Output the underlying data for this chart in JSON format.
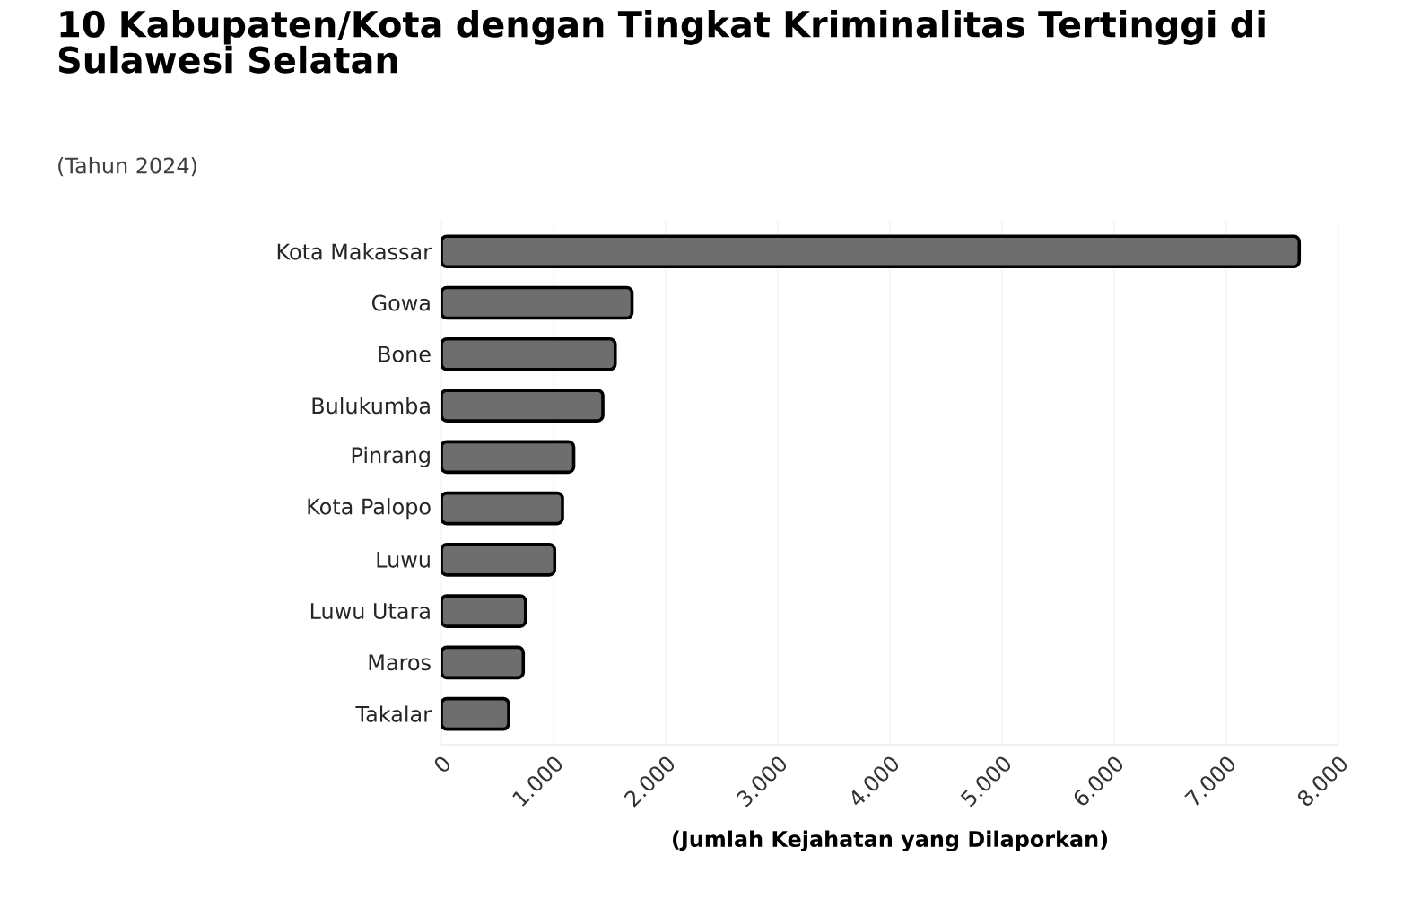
{
  "chart_data": {
    "type": "bar",
    "orientation": "horizontal",
    "title": "10 Kabupaten/Kota dengan Tingkat Kriminalitas Tertinggi di Sulawesi Selatan",
    "subtitle": "(Tahun 2024)",
    "xlabel": "(Jumlah Kejahatan yang Dilaporkan)",
    "categories": [
      "Kota Makassar",
      "Gowa",
      "Bone",
      "Bulukumba",
      "Pinrang",
      "Kota Palopo",
      "Luwu",
      "Luwu Utara",
      "Maros",
      "Takalar"
    ],
    "values": [
      7650,
      1700,
      1550,
      1440,
      1180,
      1080,
      1010,
      750,
      730,
      600
    ],
    "color": "#6e6e6e",
    "xlim": [
      0,
      8000
    ],
    "xticks": [
      0,
      {
        "value": 1000,
        "label": "1.000"
      },
      {
        "value": 2000,
        "label": "2.000"
      },
      {
        "value": 3000,
        "label": "3.000"
      },
      {
        "value": 4000,
        "label": "4.000"
      },
      {
        "value": 5000,
        "label": "5.000"
      },
      {
        "value": 6000,
        "label": "6.000"
      },
      {
        "value": 7000,
        "label": "7.000"
      },
      {
        "value": 8000,
        "label": "8.000"
      }
    ],
    "grid": "x"
  }
}
